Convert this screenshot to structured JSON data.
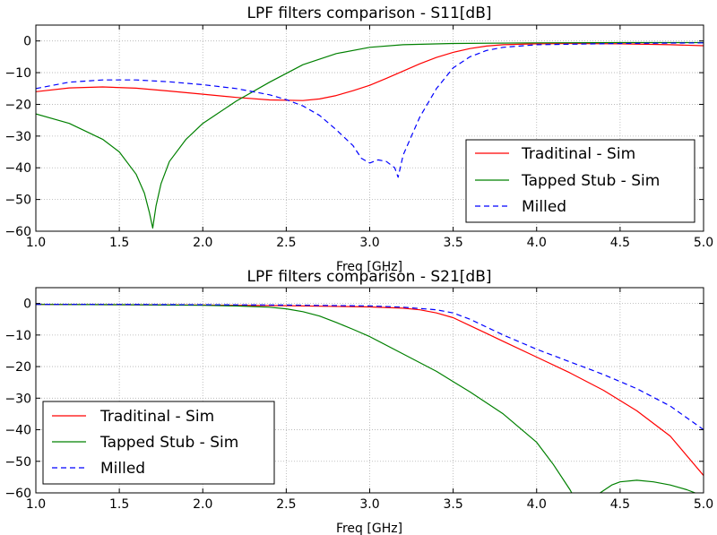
{
  "chart_data": [
    {
      "type": "line",
      "title": "LPF filters comparison - S11[dB]",
      "xlabel": "Freq [GHz]",
      "ylabel": "",
      "xlim": [
        1.0,
        5.0
      ],
      "ylim": [
        -60,
        5
      ],
      "xticks": [
        "1.0",
        "1.5",
        "2.0",
        "2.5",
        "3.0",
        "3.5",
        "4.0",
        "4.5",
        "5.0"
      ],
      "yticks": [
        "0",
        "−10",
        "−20",
        "−30",
        "−40",
        "−50",
        "−60"
      ],
      "grid": true,
      "legend_position": "lower-right",
      "series": [
        {
          "name": "Traditinal - Sim",
          "color": "#ff0000",
          "style": "solid",
          "x": [
            1.0,
            1.2,
            1.4,
            1.6,
            1.8,
            2.0,
            2.2,
            2.4,
            2.6,
            2.7,
            2.8,
            2.9,
            3.0,
            3.1,
            3.2,
            3.3,
            3.4,
            3.5,
            3.6,
            3.7,
            3.8,
            4.0,
            4.2,
            4.5,
            4.8,
            5.0
          ],
          "y": [
            -16,
            -14.8,
            -14.5,
            -14.9,
            -15.8,
            -16.8,
            -17.8,
            -18.6,
            -18.8,
            -18.3,
            -17.2,
            -15.7,
            -14.0,
            -11.8,
            -9.5,
            -7.2,
            -5.2,
            -3.6,
            -2.4,
            -1.6,
            -1.2,
            -0.9,
            -0.8,
            -0.9,
            -1.2,
            -1.5
          ]
        },
        {
          "name": "Tapped Stub - Sim",
          "color": "#008000",
          "style": "solid",
          "x": [
            1.0,
            1.2,
            1.4,
            1.5,
            1.6,
            1.65,
            1.68,
            1.7,
            1.72,
            1.75,
            1.8,
            1.9,
            2.0,
            2.2,
            2.4,
            2.6,
            2.8,
            3.0,
            3.2,
            3.5,
            4.0,
            4.5,
            5.0
          ],
          "y": [
            -23,
            -26,
            -31,
            -35,
            -42,
            -48,
            -54,
            -59,
            -52,
            -45,
            -38,
            -31,
            -26,
            -19,
            -13,
            -7.5,
            -4,
            -2,
            -1.2,
            -0.8,
            -0.6,
            -0.5,
            -0.5
          ]
        },
        {
          "name": "Milled",
          "color": "#0000ff",
          "style": "dashed",
          "x": [
            1.0,
            1.2,
            1.4,
            1.6,
            1.8,
            2.0,
            2.2,
            2.4,
            2.5,
            2.6,
            2.7,
            2.8,
            2.9,
            2.95,
            3.0,
            3.05,
            3.1,
            3.15,
            3.17,
            3.2,
            3.25,
            3.3,
            3.4,
            3.5,
            3.6,
            3.7,
            3.8,
            4.0,
            4.5,
            5.0
          ],
          "y": [
            -15,
            -13,
            -12.3,
            -12.3,
            -12.9,
            -13.8,
            -15,
            -17,
            -18.5,
            -20.5,
            -23.5,
            -28,
            -33,
            -37,
            -38.5,
            -37.5,
            -38,
            -40,
            -43,
            -36,
            -30,
            -24,
            -15,
            -8.5,
            -5,
            -3,
            -2,
            -1.2,
            -0.8,
            -0.6
          ]
        }
      ]
    },
    {
      "type": "line",
      "title": "LPF filters comparison - S21[dB]",
      "xlabel": "Freq [GHz]",
      "ylabel": "",
      "xlim": [
        1.0,
        5.0
      ],
      "ylim": [
        -60,
        5
      ],
      "xticks": [
        "1.0",
        "1.5",
        "2.0",
        "2.5",
        "3.0",
        "3.5",
        "4.0",
        "4.5",
        "5.0"
      ],
      "yticks": [
        "0",
        "−10",
        "−20",
        "−30",
        "−40",
        "−50",
        "−60"
      ],
      "grid": true,
      "legend_position": "lower-left",
      "series": [
        {
          "name": "Traditinal - Sim",
          "color": "#ff0000",
          "style": "solid",
          "x": [
            1.0,
            1.5,
            2.0,
            2.5,
            3.0,
            3.2,
            3.3,
            3.4,
            3.5,
            3.6,
            3.7,
            3.8,
            4.0,
            4.2,
            4.4,
            4.6,
            4.8,
            5.0
          ],
          "y": [
            -0.3,
            -0.4,
            -0.5,
            -0.7,
            -1.1,
            -1.5,
            -2,
            -3,
            -4.5,
            -7,
            -9.5,
            -12,
            -17,
            -22,
            -27.5,
            -34,
            -42,
            -54.5
          ]
        },
        {
          "name": "Tapped Stub - Sim",
          "color": "#008000",
          "style": "solid",
          "x": [
            1.0,
            1.5,
            2.0,
            2.2,
            2.4,
            2.5,
            2.6,
            2.7,
            2.8,
            2.9,
            3.0,
            3.2,
            3.4,
            3.6,
            3.8,
            4.0,
            4.1,
            4.2,
            4.21
          ],
          "y": [
            -0.3,
            -0.4,
            -0.6,
            -0.8,
            -1.2,
            -1.7,
            -2.6,
            -4,
            -6,
            -8.2,
            -10.5,
            -16,
            -21.5,
            -28,
            -35,
            -44,
            -51,
            -59,
            -60
          ]
        },
        {
          "name": "Tapped Stub - Sim",
          "color": "#008000",
          "style": "solid",
          "x": [
            4.38,
            4.45,
            4.5,
            4.6,
            4.7,
            4.8,
            4.9,
            4.95
          ],
          "y": [
            -60,
            -57.5,
            -56.5,
            -56,
            -56.5,
            -57.5,
            -59,
            -60
          ]
        },
        {
          "name": "Milled",
          "color": "#0000ff",
          "style": "dashed",
          "x": [
            1.0,
            1.5,
            2.0,
            2.5,
            3.0,
            3.2,
            3.4,
            3.5,
            3.6,
            3.7,
            3.8,
            4.0,
            4.2,
            4.4,
            4.6,
            4.8,
            5.0
          ],
          "y": [
            -0.3,
            -0.3,
            -0.4,
            -0.5,
            -0.8,
            -1.2,
            -2,
            -3,
            -5,
            -7.5,
            -10,
            -14.5,
            -18.5,
            -22.5,
            -27,
            -32.5,
            -40
          ]
        }
      ]
    }
  ],
  "legend_entries": [
    {
      "label": "Traditinal - Sim",
      "color": "#ff0000",
      "style": "solid"
    },
    {
      "label": "Tapped Stub - Sim",
      "color": "#008000",
      "style": "solid"
    },
    {
      "label": "Milled",
      "color": "#0000ff",
      "style": "dashed"
    }
  ]
}
